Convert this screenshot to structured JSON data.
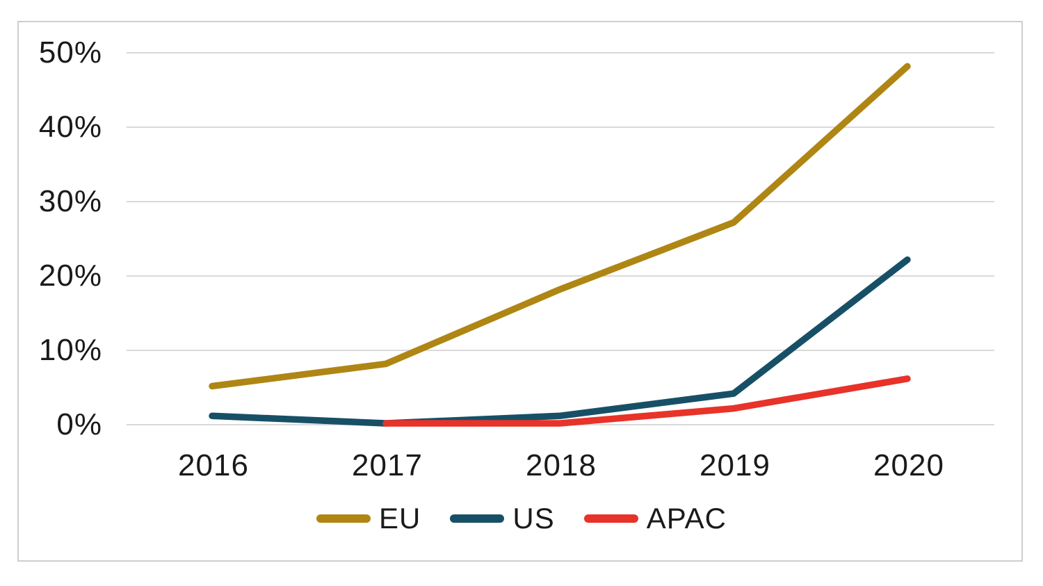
{
  "chart_data": {
    "type": "line",
    "categories": [
      "2016",
      "2017",
      "2018",
      "2019",
      "2020"
    ],
    "series": [
      {
        "name": "EU",
        "color": "#af8614",
        "values": [
          5,
          8,
          18,
          27,
          48
        ]
      },
      {
        "name": "US",
        "color": "#175066",
        "values": [
          1,
          0,
          1,
          4,
          22
        ]
      },
      {
        "name": "APAC",
        "color": "#e73329",
        "values": [
          null,
          0,
          0,
          2,
          6
        ]
      }
    ],
    "title": "",
    "xlabel": "",
    "ylabel": "",
    "ylim": [
      0,
      50
    ],
    "yticks": [
      0,
      10,
      20,
      30,
      40,
      50
    ],
    "ytick_suffix": "%",
    "grid": "horizontal",
    "legend_position": "bottom",
    "colors": {
      "gridline": "#d9d9d9",
      "border": "#cfcdcd",
      "text": "#1a1a1a",
      "background": "#ffffff"
    }
  }
}
